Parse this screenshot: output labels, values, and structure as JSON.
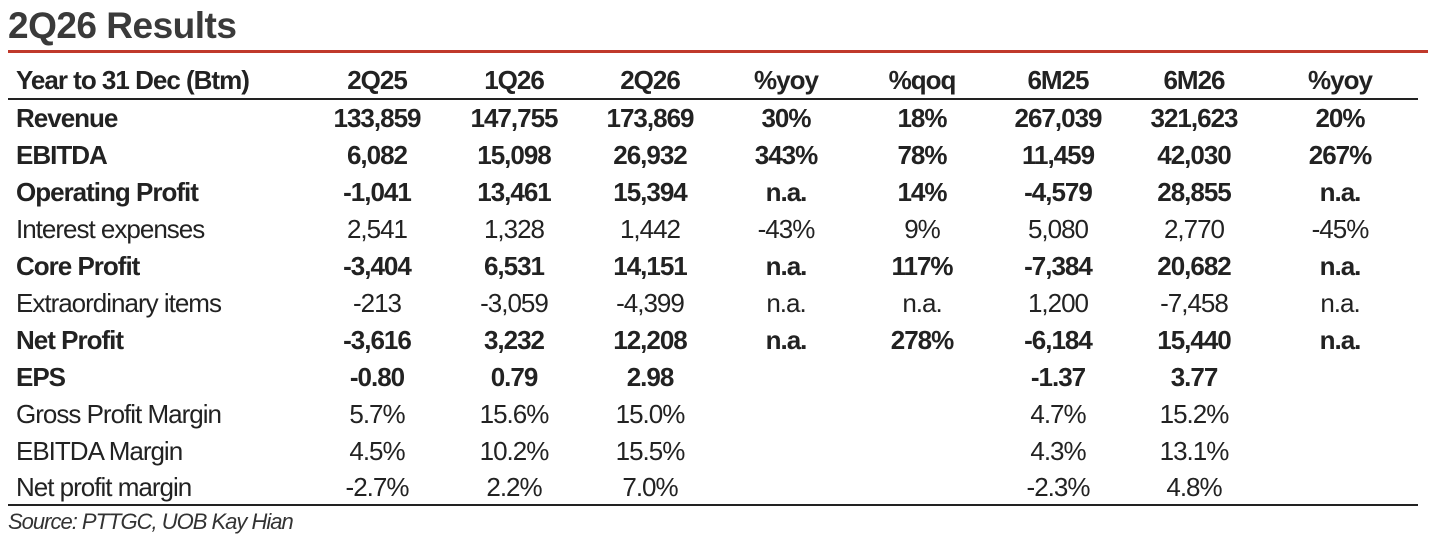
{
  "title": "2Q26 Results",
  "table": {
    "headers": [
      "Year to 31 Dec (Btm)",
      "2Q25",
      "1Q26",
      "2Q26",
      "%yoy",
      "%qoq",
      "6M25",
      "6M26",
      "%yoy"
    ],
    "rows": [
      {
        "label": "Revenue",
        "bold": true,
        "cells": [
          "133,859",
          "147,755",
          "173,869",
          "30%",
          "18%",
          "267,039",
          "321,623",
          "20%"
        ]
      },
      {
        "label": "EBITDA",
        "bold": true,
        "cells": [
          "6,082",
          "15,098",
          "26,932",
          "343%",
          "78%",
          "11,459",
          "42,030",
          "267%"
        ]
      },
      {
        "label": "Operating Profit",
        "bold": true,
        "cells": [
          "-1,041",
          "13,461",
          "15,394",
          "n.a.",
          "14%",
          "-4,579",
          "28,855",
          "n.a."
        ]
      },
      {
        "label": "Interest expenses",
        "bold": false,
        "cells": [
          "2,541",
          "1,328",
          "1,442",
          "-43%",
          "9%",
          "5,080",
          "2,770",
          "-45%"
        ]
      },
      {
        "label": "Core Profit",
        "bold": true,
        "cells": [
          "-3,404",
          "6,531",
          "14,151",
          "n.a.",
          "117%",
          "-7,384",
          "20,682",
          "n.a."
        ]
      },
      {
        "label": "Extraordinary items",
        "bold": false,
        "cells": [
          "-213",
          "-3,059",
          "-4,399",
          "n.a.",
          "n.a.",
          "1,200",
          "-7,458",
          "n.a."
        ]
      },
      {
        "label": "Net Profit",
        "bold": true,
        "cells": [
          "-3,616",
          "3,232",
          "12,208",
          "n.a.",
          "278%",
          "-6,184",
          "15,440",
          "n.a."
        ]
      },
      {
        "label": "EPS",
        "bold": true,
        "cells": [
          "-0.80",
          "0.79",
          "2.98",
          "",
          "",
          "-1.37",
          "3.77",
          ""
        ]
      },
      {
        "label": "Gross Profit Margin",
        "bold": false,
        "cells": [
          "5.7%",
          "15.6%",
          "15.0%",
          "",
          "",
          "4.7%",
          "15.2%",
          ""
        ]
      },
      {
        "label": "EBITDA Margin",
        "bold": false,
        "cells": [
          "4.5%",
          "10.2%",
          "15.5%",
          "",
          "",
          "4.3%",
          "13.1%",
          ""
        ]
      },
      {
        "label": "Net profit margin",
        "bold": false,
        "cells": [
          "-2.7%",
          "2.2%",
          "7.0%",
          "",
          "",
          "-2.3%",
          "4.8%",
          ""
        ]
      }
    ]
  },
  "source": "Source: PTTGC, UOB Kay Hian",
  "colors": {
    "accent_rule": "#c0392b",
    "text": "#222222"
  }
}
